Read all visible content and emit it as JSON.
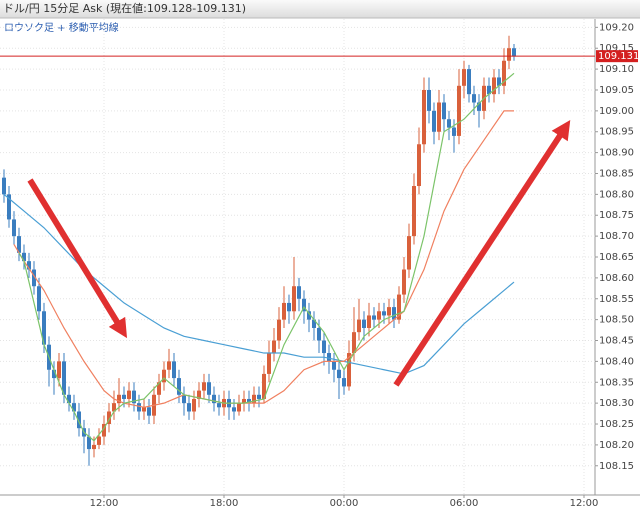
{
  "chart_data": {
    "type": "candlestick",
    "title": "ドル/円 15分足 Ask (現在値:109.128-109.131)",
    "subtitle": "ロウソク足 + 移動平均線",
    "up_color": "#d9603b",
    "down_color": "#3a7dbf",
    "x": [
      7,
      7.25,
      7.5,
      7.75,
      8,
      8.25,
      8.5,
      8.75,
      9,
      9.25,
      9.5,
      9.75,
      10,
      10.25,
      10.5,
      10.75,
      11,
      11.25,
      11.5,
      11.75,
      12,
      12.25,
      12.5,
      12.75,
      13,
      13.25,
      13.5,
      13.75,
      14,
      14.25,
      14.5,
      14.75,
      15,
      15.25,
      15.5,
      15.75,
      16,
      16.25,
      16.5,
      16.75,
      17,
      17.25,
      17.5,
      17.75,
      18,
      18.25,
      18.5,
      18.75,
      19,
      19.25,
      19.5,
      19.75,
      20,
      20.25,
      20.5,
      20.75,
      21,
      21.25,
      21.5,
      21.75,
      22,
      22.25,
      22.5,
      22.75,
      23,
      23.25,
      23.5,
      23.75,
      24,
      24.25,
      24.5,
      24.75,
      25,
      25.25,
      25.5,
      25.75,
      26,
      26.25,
      26.5,
      26.75,
      27,
      27.25,
      27.5,
      27.75,
      28,
      28.25,
      28.5,
      28.75,
      29,
      29.25,
      29.5,
      29.75,
      30,
      30.25,
      30.5,
      30.75,
      31,
      31.25,
      31.5,
      31.75,
      32,
      32.25,
      32.5
    ],
    "open": [
      108.84,
      108.8,
      108.74,
      108.7,
      108.66,
      108.64,
      108.62,
      108.58,
      108.52,
      108.44,
      108.38,
      108.36,
      108.4,
      108.32,
      108.3,
      108.28,
      108.24,
      108.22,
      108.19,
      108.2,
      108.22,
      108.25,
      108.28,
      108.3,
      108.32,
      108.31,
      108.33,
      108.3,
      108.28,
      108.29,
      108.27,
      108.32,
      108.35,
      108.38,
      108.4,
      108.36,
      108.32,
      108.3,
      108.28,
      108.31,
      108.33,
      108.35,
      108.32,
      108.3,
      108.29,
      108.31,
      108.29,
      108.28,
      108.3,
      108.31,
      108.3,
      108.32,
      108.31,
      108.37,
      108.42,
      108.45,
      108.5,
      108.54,
      108.52,
      108.58,
      108.55,
      108.52,
      108.5,
      108.48,
      108.45,
      108.42,
      108.4,
      108.38,
      108.36,
      108.34,
      108.42,
      108.47,
      108.5,
      108.48,
      108.51,
      108.5,
      108.52,
      108.51,
      108.53,
      108.5,
      108.56,
      108.62,
      108.7,
      108.82,
      108.92,
      109.05,
      109.0,
      108.95,
      109.02,
      108.98,
      108.96,
      108.94,
      109.06,
      109.1,
      109.04,
      109.02,
      109.0,
      109.06,
      109.04,
      109.08,
      109.06,
      109.12,
      109.15
    ],
    "high": [
      108.86,
      108.82,
      108.76,
      108.72,
      108.68,
      108.66,
      108.64,
      108.6,
      108.54,
      108.46,
      108.4,
      108.42,
      108.42,
      108.34,
      108.32,
      108.3,
      108.26,
      108.24,
      108.22,
      108.24,
      108.27,
      108.3,
      108.33,
      108.36,
      108.34,
      108.35,
      108.35,
      108.32,
      108.31,
      108.31,
      108.34,
      108.37,
      108.4,
      108.43,
      108.42,
      108.38,
      108.34,
      108.32,
      108.33,
      108.35,
      108.37,
      108.37,
      108.34,
      108.32,
      108.33,
      108.33,
      108.31,
      108.32,
      108.33,
      108.33,
      108.34,
      108.34,
      108.39,
      108.45,
      108.48,
      108.53,
      108.58,
      108.56,
      108.65,
      108.6,
      108.57,
      108.54,
      108.52,
      108.5,
      108.47,
      108.44,
      108.42,
      108.4,
      108.38,
      108.45,
      108.53,
      108.55,
      108.52,
      108.54,
      108.53,
      108.54,
      108.54,
      108.55,
      108.55,
      108.58,
      108.65,
      108.73,
      108.85,
      108.96,
      109.08,
      109.08,
      109.02,
      109.05,
      109.04,
      109.0,
      108.98,
      109.1,
      109.12,
      109.11,
      109.06,
      109.04,
      109.08,
      109.08,
      109.1,
      109.1,
      109.15,
      109.18,
      109.16
    ],
    "low": [
      108.78,
      108.72,
      108.68,
      108.64,
      108.62,
      108.6,
      108.56,
      108.5,
      108.42,
      108.34,
      108.32,
      108.34,
      108.3,
      108.28,
      108.26,
      108.22,
      108.18,
      108.15,
      108.17,
      108.19,
      108.2,
      108.23,
      108.26,
      108.28,
      108.29,
      108.29,
      108.28,
      108.26,
      108.26,
      108.25,
      108.25,
      108.3,
      108.33,
      108.36,
      108.34,
      108.3,
      108.27,
      108.26,
      108.26,
      108.29,
      108.31,
      108.3,
      108.28,
      108.27,
      108.27,
      108.26,
      108.26,
      108.27,
      108.28,
      108.28,
      108.29,
      108.29,
      108.3,
      108.35,
      108.4,
      108.43,
      108.48,
      108.49,
      108.5,
      108.52,
      108.49,
      108.47,
      108.45,
      108.42,
      108.39,
      108.37,
      108.35,
      108.31,
      108.32,
      108.33,
      108.4,
      108.45,
      108.45,
      108.46,
      108.48,
      108.48,
      108.49,
      108.49,
      108.48,
      108.49,
      108.54,
      108.6,
      108.68,
      108.8,
      108.9,
      108.97,
      108.92,
      108.93,
      108.95,
      108.93,
      108.9,
      108.92,
      109.03,
      109.02,
      108.99,
      108.96,
      108.98,
      109.02,
      109.02,
      109.04,
      109.04,
      109.1,
      109.12
    ],
    "close": [
      108.8,
      108.74,
      108.7,
      108.66,
      108.64,
      108.62,
      108.58,
      108.52,
      108.44,
      108.38,
      108.36,
      108.4,
      108.32,
      108.3,
      108.28,
      108.24,
      108.22,
      108.19,
      108.2,
      108.22,
      108.25,
      108.28,
      108.3,
      108.32,
      108.31,
      108.33,
      108.3,
      108.28,
      108.29,
      108.27,
      108.32,
      108.35,
      108.38,
      108.4,
      108.36,
      108.32,
      108.3,
      108.28,
      108.31,
      108.33,
      108.35,
      108.32,
      108.3,
      108.29,
      108.31,
      108.29,
      108.28,
      108.3,
      108.31,
      108.3,
      108.32,
      108.31,
      108.37,
      108.42,
      108.45,
      108.5,
      108.54,
      108.52,
      108.58,
      108.55,
      108.52,
      108.5,
      108.48,
      108.45,
      108.42,
      108.4,
      108.38,
      108.36,
      108.34,
      108.42,
      108.47,
      108.5,
      108.48,
      108.51,
      108.5,
      108.52,
      108.51,
      108.53,
      108.5,
      108.56,
      108.62,
      108.7,
      108.82,
      108.92,
      109.05,
      109.0,
      108.95,
      109.02,
      108.98,
      108.96,
      108.94,
      109.06,
      109.1,
      109.04,
      109.02,
      109.0,
      109.06,
      109.04,
      109.08,
      109.06,
      109.12,
      109.15,
      109.13
    ],
    "lines": [
      {
        "color": "#4a9fd4",
        "x": [
          7,
          8,
          9,
          10,
          11,
          12,
          13,
          14,
          15,
          16,
          17,
          18,
          19,
          20,
          21,
          22,
          23,
          24,
          25,
          26,
          27,
          28,
          29,
          30,
          31,
          32,
          32.5
        ],
        "values": [
          108.8,
          108.76,
          108.72,
          108.67,
          108.62,
          108.58,
          108.54,
          108.51,
          108.48,
          108.46,
          108.45,
          108.44,
          108.43,
          108.42,
          108.42,
          108.41,
          108.41,
          108.4,
          108.39,
          108.38,
          108.37,
          108.39,
          108.44,
          108.49,
          108.53,
          108.57,
          108.59
        ]
      },
      {
        "color": "#f08060",
        "x": [
          7.5,
          8,
          9,
          10,
          11,
          12,
          12.5,
          13,
          14,
          15,
          16,
          17,
          18,
          19,
          20,
          21,
          22,
          23,
          24,
          25,
          26,
          27,
          28,
          29,
          30,
          31,
          32,
          32.5
        ],
        "values": [
          108.68,
          108.64,
          108.57,
          108.48,
          108.4,
          108.33,
          108.31,
          108.3,
          108.29,
          108.3,
          108.32,
          108.31,
          108.3,
          108.3,
          108.3,
          108.33,
          108.38,
          108.4,
          108.4,
          108.44,
          108.48,
          108.52,
          108.62,
          108.76,
          108.86,
          108.93,
          109.0,
          109.0
        ]
      },
      {
        "color": "#7cc46a",
        "x": [
          7.75,
          8,
          8.5,
          9,
          9.5,
          10,
          10.5,
          11,
          11.5,
          12,
          12.5,
          13,
          14,
          15,
          16,
          17,
          18,
          19,
          20,
          21,
          22,
          23,
          24,
          25,
          26,
          27,
          28,
          29,
          30,
          31,
          32,
          32.5
        ],
        "values": [
          108.66,
          108.64,
          108.54,
          108.44,
          108.38,
          108.32,
          108.28,
          108.23,
          108.21,
          108.24,
          108.28,
          108.3,
          108.31,
          108.36,
          108.32,
          108.31,
          108.3,
          108.3,
          108.31,
          108.44,
          108.53,
          108.47,
          108.38,
          108.46,
          108.5,
          108.52,
          108.7,
          108.95,
          108.98,
          109.03,
          109.07,
          109.09
        ]
      }
    ],
    "current_price": 109.131,
    "current_color": "#d42020",
    "xlim": [
      6.8,
      36.55
    ],
    "xticks": [
      {
        "value": 12,
        "label": "12:00"
      },
      {
        "value": 18,
        "label": "18:00"
      },
      {
        "value": 24,
        "label": "00:00"
      },
      {
        "value": 30,
        "label": "06:00"
      },
      {
        "value": 36,
        "label": "12:00"
      }
    ],
    "ylim": [
      108.08,
      109.22
    ],
    "yticks": [
      108.15,
      {
        "value": 108.2,
        "label": "108.20"
      },
      108.25,
      {
        "value": 108.3,
        "label": "108.30"
      },
      108.35,
      {
        "value": 108.4,
        "label": "108.40"
      },
      108.45,
      {
        "value": 108.5,
        "label": "108.50"
      },
      108.55,
      {
        "value": 108.6,
        "label": "108.60"
      },
      108.65,
      {
        "value": 108.7,
        "label": "108.70"
      },
      108.75,
      {
        "value": 108.8,
        "label": "108.80"
      },
      108.85,
      {
        "value": 108.9,
        "label": "108.90"
      },
      108.95,
      {
        "value": 109,
        "label": "109.00"
      },
      109.05,
      {
        "value": 109.1,
        "label": "109.10"
      },
      109.15,
      {
        "value": 109.2,
        "label": "109.20"
      }
    ],
    "grid": true
  }
}
